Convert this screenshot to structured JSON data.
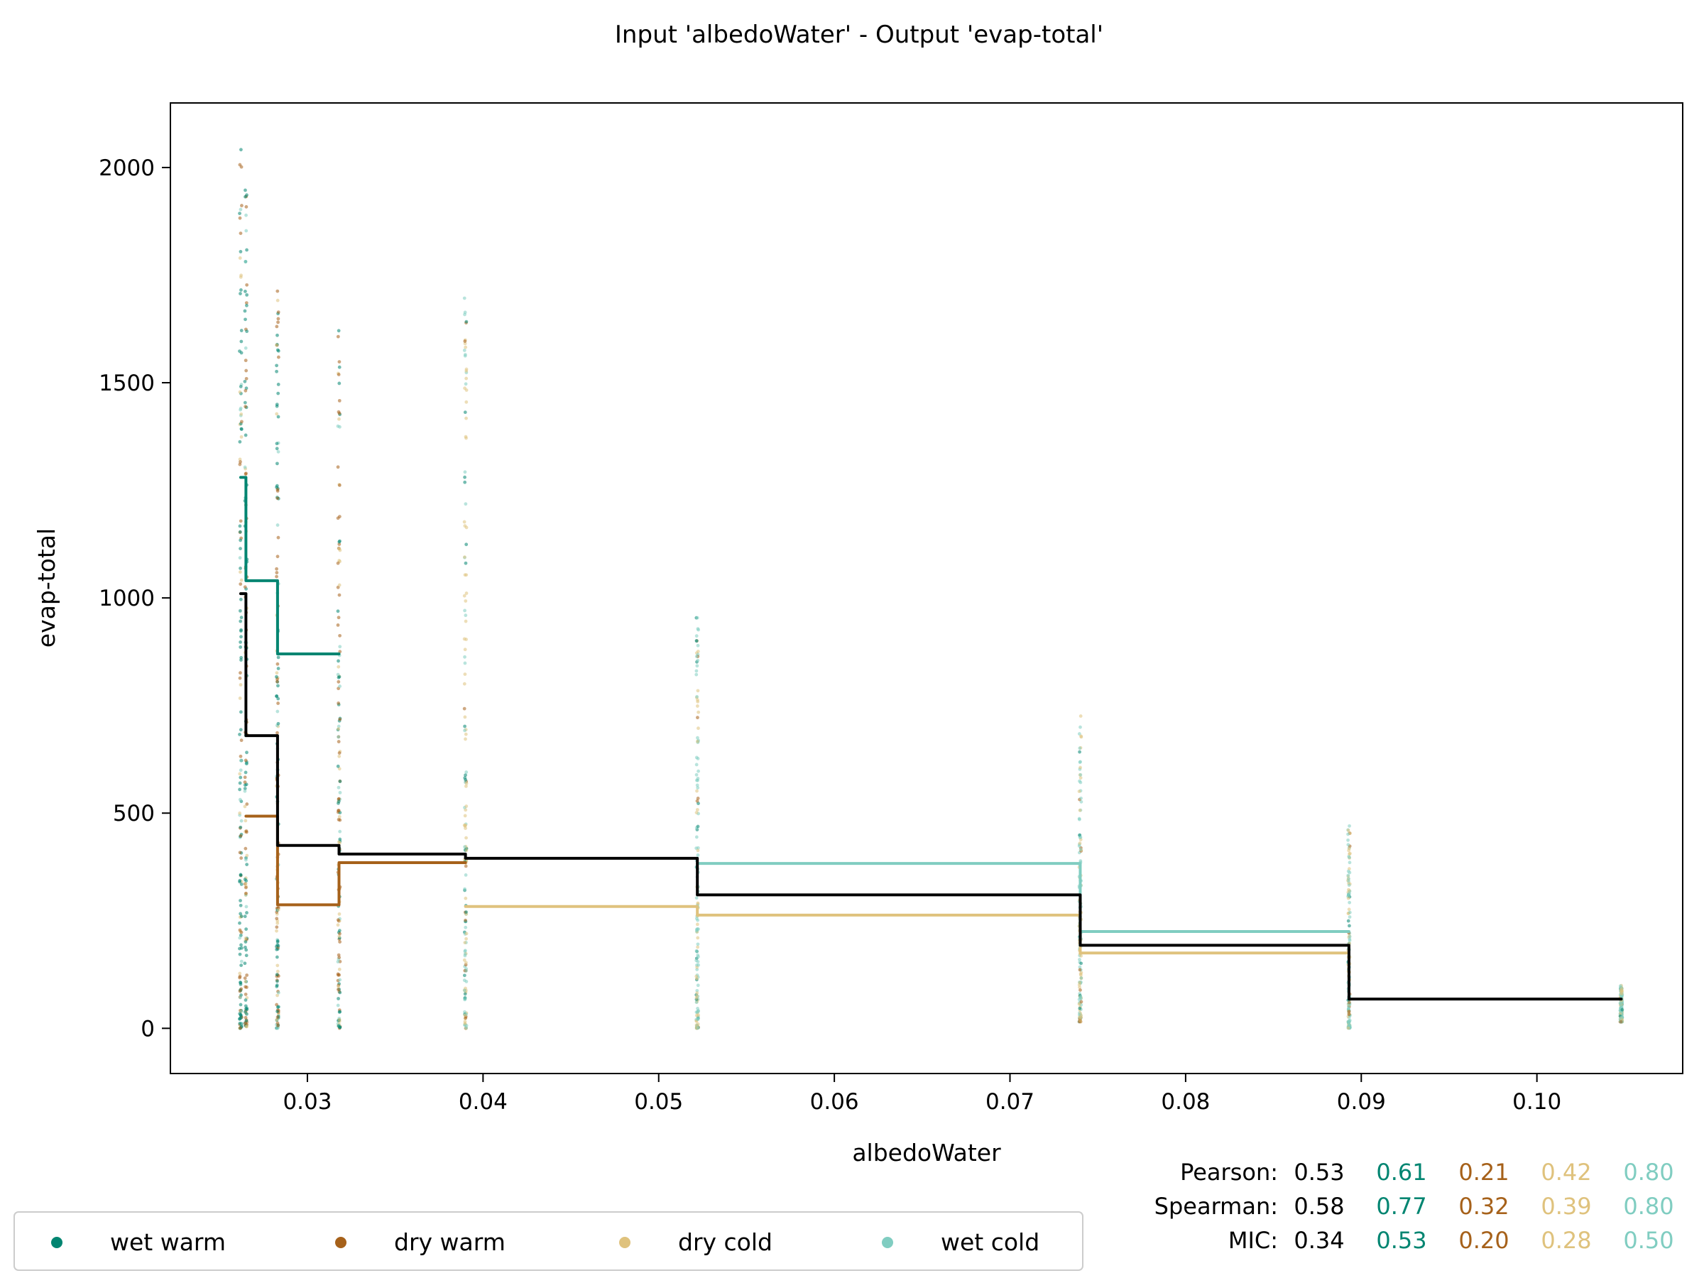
{
  "chart_data": {
    "type": "step",
    "title": "Input 'albedoWater' - Output 'evap-total'",
    "xlabel": "albedoWater",
    "ylabel": "evap-total",
    "xlim": [
      0.0222,
      0.1083
    ],
    "ylim": [
      -105,
      2150
    ],
    "x_ticks": [
      0.03,
      0.04,
      0.05,
      0.06,
      0.07,
      0.08,
      0.09,
      0.1
    ],
    "x_tick_labels": [
      "0.03",
      "0.04",
      "0.05",
      "0.06",
      "0.07",
      "0.08",
      "0.09",
      "0.10"
    ],
    "y_ticks": [
      0,
      500,
      1000,
      1500,
      2000
    ],
    "y_tick_labels": [
      "0",
      "500",
      "1000",
      "1500",
      "2000"
    ],
    "colors": {
      "all": "#000000",
      "wet_warm": "#018571",
      "dry_warm": "#a6611a",
      "dry_cold": "#dfc27d",
      "wet_cold": "#80cdc1"
    },
    "grid": false,
    "legend_position": "bottom-left",
    "legend": [
      {
        "label": "wet warm",
        "color": "#018571"
      },
      {
        "label": "dry warm",
        "color": "#a6611a"
      },
      {
        "label": "dry cold",
        "color": "#dfc27d"
      },
      {
        "label": "wet cold",
        "color": "#80cdc1"
      }
    ],
    "scatter_x_groups": [
      0.0262,
      0.0265,
      0.0283,
      0.0318,
      0.039,
      0.0522,
      0.074,
      0.0893,
      0.1048
    ],
    "series": [
      {
        "name": "all",
        "color": "#000000",
        "steps": [
          {
            "x0": 0.0262,
            "x1": 0.0265,
            "y": 1010
          },
          {
            "x0": 0.0265,
            "x1": 0.0283,
            "y": 680
          },
          {
            "x0": 0.0283,
            "x1": 0.0318,
            "y": 425
          },
          {
            "x0": 0.0318,
            "x1": 0.039,
            "y": 405
          },
          {
            "x0": 0.039,
            "x1": 0.0522,
            "y": 395
          },
          {
            "x0": 0.0522,
            "x1": 0.074,
            "y": 310
          },
          {
            "x0": 0.074,
            "x1": 0.0893,
            "y": 193
          },
          {
            "x0": 0.0893,
            "x1": 0.1048,
            "y": 68
          }
        ]
      },
      {
        "name": "wet warm",
        "color": "#018571",
        "steps": [
          {
            "x0": 0.0262,
            "x1": 0.0265,
            "y": 1280
          },
          {
            "x0": 0.0265,
            "x1": 0.0283,
            "y": 1040
          },
          {
            "x0": 0.0283,
            "x1": 0.0318,
            "y": 870
          }
        ]
      },
      {
        "name": "dry warm",
        "color": "#a6611a",
        "steps": [
          {
            "x0": 0.0265,
            "x1": 0.0283,
            "y": 493
          },
          {
            "x0": 0.0283,
            "x1": 0.0318,
            "y": 287
          },
          {
            "x0": 0.0318,
            "x1": 0.039,
            "y": 385
          }
        ]
      },
      {
        "name": "dry cold",
        "color": "#dfc27d",
        "steps": [
          {
            "x0": 0.039,
            "x1": 0.0522,
            "y": 283
          },
          {
            "x0": 0.0522,
            "x1": 0.074,
            "y": 263
          },
          {
            "x0": 0.074,
            "x1": 0.0893,
            "y": 175
          }
        ]
      },
      {
        "name": "wet cold",
        "color": "#80cdc1",
        "steps": [
          {
            "x0": 0.0522,
            "x1": 0.074,
            "y": 383
          },
          {
            "x0": 0.074,
            "x1": 0.0893,
            "y": 225
          }
        ]
      }
    ],
    "stats": {
      "rows": [
        {
          "label": "Pearson:",
          "values": [
            "0.53",
            "0.61",
            "0.21",
            "0.42",
            "0.80"
          ]
        },
        {
          "label": "Spearman:",
          "values": [
            "0.58",
            "0.77",
            "0.32",
            "0.39",
            "0.80"
          ]
        },
        {
          "label": "MIC:",
          "values": [
            "0.34",
            "0.53",
            "0.20",
            "0.28",
            "0.50"
          ]
        }
      ],
      "value_colors": [
        "#000000",
        "#018571",
        "#a6611a",
        "#dfc27d",
        "#80cdc1"
      ]
    }
  }
}
